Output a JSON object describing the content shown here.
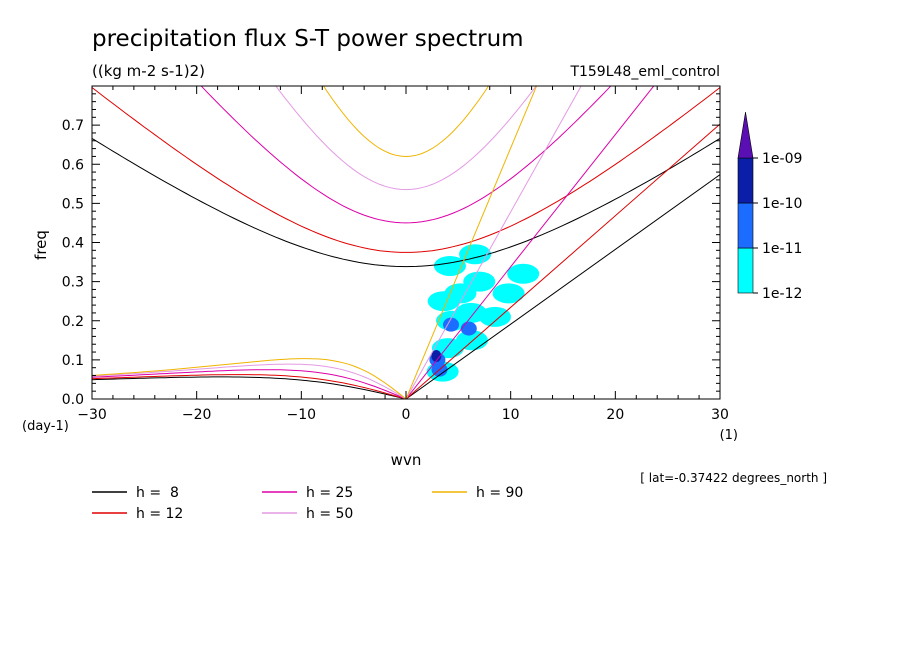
{
  "title": "precipitation flux S-T power spectrum",
  "units_label": "((kg m-2 s-1)2)",
  "run_label": "T159L48_eml_control",
  "meta_label": "[ lat=-0.37422 degrees_north ]",
  "chart_data": {
    "type": "line",
    "xlabel": "wvn",
    "ylabel": "freq",
    "x_unit_label": "(1)",
    "y_unit_label": "(day-1)",
    "xlim": [
      -30,
      30
    ],
    "ylim": [
      0,
      0.8
    ],
    "x_ticks": [
      -30,
      -20,
      -10,
      0,
      10,
      20,
      30
    ],
    "x_tick_labels": [
      "−30",
      "−20",
      "−10",
      "0",
      "10",
      "20",
      "30"
    ],
    "y_ticks": [
      0,
      0.1,
      0.2,
      0.3,
      0.4,
      0.5,
      0.6,
      0.7
    ],
    "y_tick_labels": [
      "0.0",
      "0.1",
      "0.2",
      "0.3",
      "0.4",
      "0.5",
      "0.6",
      "0.7"
    ],
    "grid": false,
    "legend_position": "bottom",
    "series": [
      {
        "name": "h =  8",
        "h": 8,
        "color": "#000000"
      },
      {
        "name": "h = 12",
        "h": 12,
        "color": "#e00000"
      },
      {
        "name": "h = 25",
        "h": 25,
        "color": "#dd00aa"
      },
      {
        "name": "h = 50",
        "h": 50,
        "color": "#e49ae4"
      },
      {
        "name": "h = 90",
        "h": 90,
        "color": "#f0b400"
      }
    ],
    "shaded_field": {
      "colorbar_labels": [
        "1e-12",
        "1e-11",
        "1e-10",
        "1e-09"
      ],
      "colors": [
        "#00ffff",
        "#1c6cff",
        "#0a1ea8",
        "#5a0fb4"
      ],
      "blobs": [
        {
          "x": 5.2,
          "y": 0.27,
          "level": 0
        },
        {
          "x": 4.2,
          "y": 0.34,
          "level": 0
        },
        {
          "x": 6.6,
          "y": 0.37,
          "level": 0
        },
        {
          "x": 7.0,
          "y": 0.3,
          "level": 0
        },
        {
          "x": 9.8,
          "y": 0.27,
          "level": 0
        },
        {
          "x": 11.2,
          "y": 0.32,
          "level": 0
        },
        {
          "x": 3.6,
          "y": 0.25,
          "level": 0
        },
        {
          "x": 4.4,
          "y": 0.2,
          "level": 0
        },
        {
          "x": 6.2,
          "y": 0.22,
          "level": 0
        },
        {
          "x": 8.5,
          "y": 0.21,
          "level": 0
        },
        {
          "x": 4.0,
          "y": 0.13,
          "level": 0
        },
        {
          "x": 6.3,
          "y": 0.15,
          "level": 0
        },
        {
          "x": 3.5,
          "y": 0.07,
          "level": 0
        },
        {
          "x": 3.0,
          "y": 0.1,
          "level": 1
        },
        {
          "x": 3.2,
          "y": 0.075,
          "level": 1
        },
        {
          "x": 4.3,
          "y": 0.19,
          "level": 1
        },
        {
          "x": 6.0,
          "y": 0.18,
          "level": 1
        },
        {
          "x": 2.9,
          "y": 0.11,
          "level": 2
        }
      ]
    }
  }
}
